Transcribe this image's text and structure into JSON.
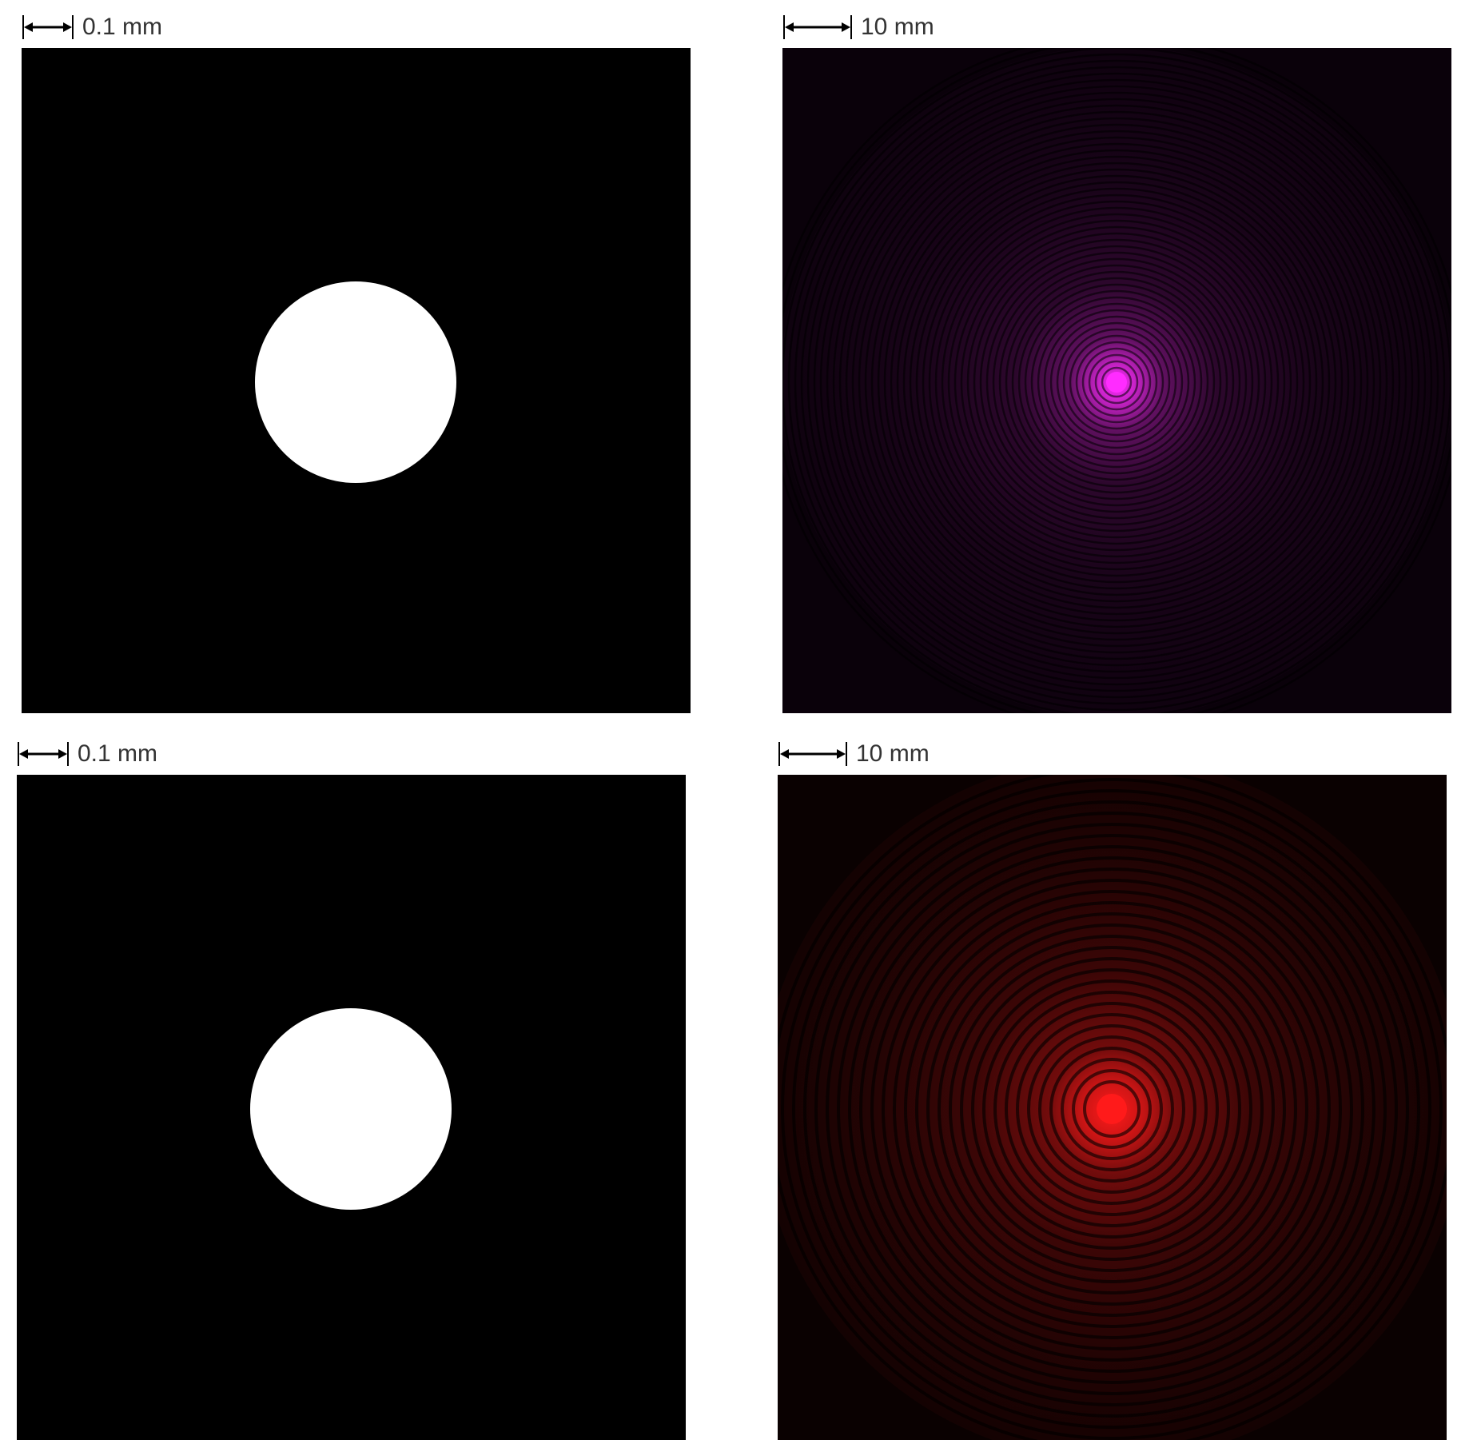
{
  "panels": [
    {
      "id": "top-left",
      "kind": "aperture",
      "scale_label": "0.1 mm"
    },
    {
      "id": "top-right",
      "kind": "diffraction",
      "scale_label": "10 mm",
      "color": "#ff2cff",
      "ring_base": "#3a0a3a",
      "background": "#0a010a"
    },
    {
      "id": "bottom-left",
      "kind": "aperture",
      "scale_label": "0.1 mm"
    },
    {
      "id": "bottom-right",
      "kind": "diffraction",
      "scale_label": "10 mm",
      "color": "#ff1a1a",
      "ring_base": "#3a0505",
      "background": "#0a0101"
    }
  ]
}
